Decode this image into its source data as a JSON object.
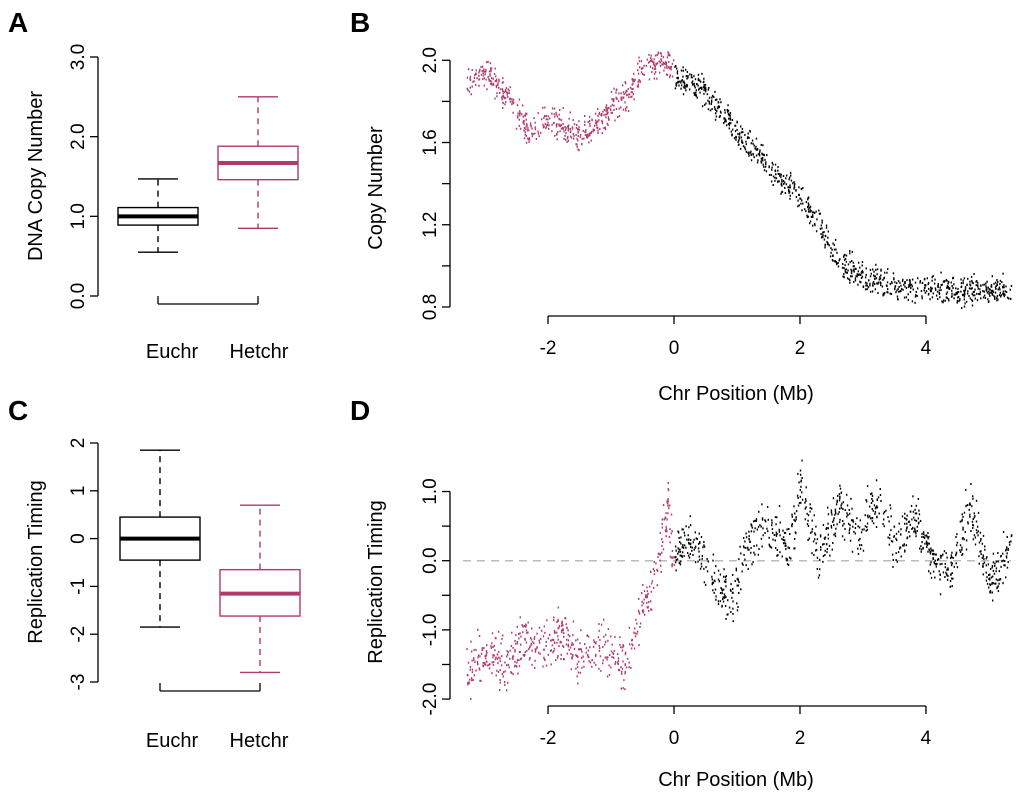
{
  "colors": {
    "euchromatin": "#000000",
    "heterochromatin": "#b23a6a",
    "reference_line": "#bbbbbb"
  },
  "chart_data": [
    {
      "panel": "A",
      "type": "box",
      "categories": [
        "Euchr",
        "Hetchr"
      ],
      "ylabel": "DNA Copy Number",
      "ylim": [
        0,
        3
      ],
      "yticks": [
        "0.0",
        "1.0",
        "2.0",
        "3.0"
      ],
      "boxes": [
        {
          "name": "Euchr",
          "whisker_low": 0.55,
          "q1": 0.89,
          "median": 1.0,
          "q3": 1.11,
          "whisker_high": 1.47,
          "color": "#000000"
        },
        {
          "name": "Hetchr",
          "whisker_low": 0.85,
          "q1": 1.46,
          "median": 1.67,
          "q3": 1.88,
          "whisker_high": 2.5,
          "color": "#b23a6a"
        }
      ]
    },
    {
      "panel": "B",
      "type": "scatter",
      "xlabel": "Chr Position (Mb)",
      "ylabel": "Copy Number",
      "xlim": [
        -3.35,
        5.35
      ],
      "ylim": [
        0.8,
        2.05
      ],
      "xticks": [
        "-2",
        "0",
        "2",
        "4"
      ],
      "yticks": [
        "0.8",
        "1.2",
        "1.6",
        "2.0"
      ],
      "series": [
        {
          "group": "heterochromatin",
          "x_range": [
            -3.3,
            0
          ],
          "color": "#b23a6a",
          "profile": [
            [
              -3.3,
              1.9
            ],
            [
              -3.0,
              1.95
            ],
            [
              -2.6,
              1.8
            ],
            [
              -2.3,
              1.65
            ],
            [
              -2.0,
              1.72
            ],
            [
              -1.7,
              1.67
            ],
            [
              -1.4,
              1.65
            ],
            [
              -1.2,
              1.7
            ],
            [
              -1.0,
              1.78
            ],
            [
              -0.7,
              1.85
            ],
            [
              -0.5,
              1.98
            ],
            [
              -0.2,
              2.0
            ],
            [
              0,
              1.95
            ]
          ]
        },
        {
          "group": "euchromatin",
          "x_range": [
            0,
            5.35
          ],
          "color": "#000000",
          "profile": [
            [
              0,
              1.93
            ],
            [
              0.5,
              1.85
            ],
            [
              1.0,
              1.65
            ],
            [
              1.5,
              1.48
            ],
            [
              2.0,
              1.33
            ],
            [
              2.3,
              1.2
            ],
            [
              2.6,
              1.02
            ],
            [
              3.0,
              0.95
            ],
            [
              3.5,
              0.9
            ],
            [
              4.5,
              0.89
            ],
            [
              5.35,
              0.88
            ]
          ]
        }
      ]
    },
    {
      "panel": "C",
      "type": "box",
      "categories": [
        "Euchr",
        "Hetchr"
      ],
      "ylabel": "Replication Timing",
      "ylim": [
        -3,
        2
      ],
      "yticks": [
        "-3",
        "-2",
        "-1",
        "0",
        "1",
        "2"
      ],
      "boxes": [
        {
          "name": "Euchr",
          "whisker_low": -1.85,
          "q1": -0.45,
          "median": 0.0,
          "q3": 0.45,
          "whisker_high": 1.85,
          "color": "#000000"
        },
        {
          "name": "Hetchr",
          "whisker_low": -2.8,
          "q1": -1.62,
          "median": -1.15,
          "q3": -0.65,
          "whisker_high": 0.7,
          "color": "#b23a6a"
        }
      ]
    },
    {
      "panel": "D",
      "type": "scatter",
      "xlabel": "Chr Position (Mb)",
      "ylabel": "Replication Timing",
      "xlim": [
        -3.35,
        5.35
      ],
      "ylim": [
        -2.1,
        1.6
      ],
      "xticks": [
        "-2",
        "0",
        "2",
        "4"
      ],
      "yticks": [
        "-2.0",
        "-1.0",
        "0.0",
        "1.0"
      ],
      "reference_line": 0.0,
      "series": [
        {
          "group": "heterochromatin",
          "x_range": [
            -3.3,
            0
          ],
          "color": "#b23a6a",
          "profile": [
            [
              -3.3,
              -1.6
            ],
            [
              -3.0,
              -1.3
            ],
            [
              -2.7,
              -1.5
            ],
            [
              -2.4,
              -1.1
            ],
            [
              -2.1,
              -1.3
            ],
            [
              -1.8,
              -1.0
            ],
            [
              -1.5,
              -1.4
            ],
            [
              -1.2,
              -1.2
            ],
            [
              -1.0,
              -1.3
            ],
            [
              -0.8,
              -1.5
            ],
            [
              -0.5,
              -0.6
            ],
            [
              -0.3,
              -0.2
            ],
            [
              -0.1,
              0.8
            ],
            [
              0,
              -0.3
            ]
          ]
        },
        {
          "group": "euchromatin",
          "x_range": [
            0,
            5.35
          ],
          "color": "#000000",
          "profile": [
            [
              0,
              0.1
            ],
            [
              0.3,
              0.3
            ],
            [
              0.6,
              -0.2
            ],
            [
              0.9,
              -0.6
            ],
            [
              1.2,
              0.3
            ],
            [
              1.5,
              0.5
            ],
            [
              1.8,
              0.2
            ],
            [
              2.0,
              1.1
            ],
            [
              2.3,
              0.1
            ],
            [
              2.6,
              0.8
            ],
            [
              2.9,
              0.4
            ],
            [
              3.2,
              0.9
            ],
            [
              3.5,
              0.2
            ],
            [
              3.8,
              0.7
            ],
            [
              4.1,
              0.0
            ],
            [
              4.4,
              -0.1
            ],
            [
              4.7,
              0.8
            ],
            [
              5.0,
              -0.3
            ],
            [
              5.35,
              0.2
            ]
          ]
        }
      ]
    }
  ]
}
